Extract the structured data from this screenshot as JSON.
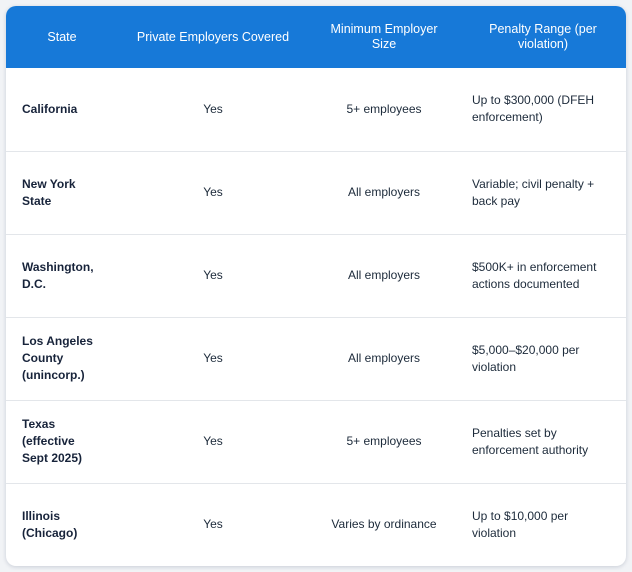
{
  "table": {
    "headers": [
      "State",
      "Private Employers Covered",
      "Minimum Employer Size",
      "Penalty Range (per violation)"
    ],
    "rows": [
      {
        "state": "California",
        "covered": "Yes",
        "min_size": "5+ employees",
        "penalty": "Up to $300,000 (DFEH enforcement)"
      },
      {
        "state": "New York State",
        "covered": "Yes",
        "min_size": "All employers",
        "penalty": "Variable; civil penalty + back pay"
      },
      {
        "state": "Washington, D.C.",
        "covered": "Yes",
        "min_size": "All employers",
        "penalty": "$500K+ in enforcement actions documented"
      },
      {
        "state": "Los Angeles County (unincorp.)",
        "covered": "Yes",
        "min_size": "All employers",
        "penalty": "$5,000–$20,000 per violation"
      },
      {
        "state": "Texas (effective Sept 2025)",
        "covered": "Yes",
        "min_size": "5+ employees",
        "penalty": "Penalties set by enforcement authority"
      },
      {
        "state": "Illinois (Chicago)",
        "covered": "Yes",
        "min_size": "Varies by ordinance",
        "penalty": "Up to $10,000 per violation"
      }
    ]
  },
  "colors": {
    "header_bg": "#1779d8",
    "header_text": "#ffffff",
    "row_divider": "#e3e6ea",
    "body_text": "#1c2a3a"
  }
}
